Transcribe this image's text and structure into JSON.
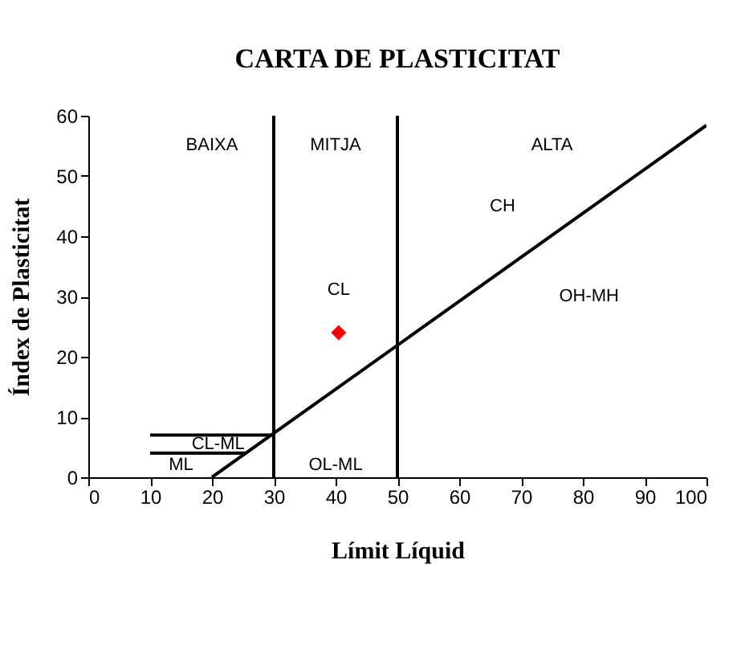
{
  "chart_data": {
    "type": "scatter",
    "title": "CARTA DE PLASTICITAT",
    "xlabel": "Límit Líquid",
    "ylabel": "Índex de Plasticitat",
    "xlim": [
      0,
      100
    ],
    "xticks": [
      0,
      10,
      20,
      30,
      40,
      50,
      60,
      70,
      80,
      90,
      100
    ],
    "ylim": [
      0,
      60
    ],
    "yticks": [
      0,
      10,
      20,
      30,
      40,
      50,
      60
    ],
    "grid": false,
    "series": [
      {
        "type": "line",
        "color": "#000000",
        "line_style": "solid",
        "marker": "none",
        "x": [
          20,
          100
        ],
        "values": [
          0,
          58.4
        ]
      },
      {
        "type": "line",
        "color": "#000000",
        "line_style": "solid",
        "marker": "none",
        "x": [
          30,
          30
        ],
        "values": [
          0,
          60
        ]
      },
      {
        "type": "line",
        "color": "#000000",
        "line_style": "solid",
        "marker": "none",
        "x": [
          50,
          50
        ],
        "values": [
          0,
          60
        ]
      },
      {
        "type": "line",
        "color": "#000000",
        "line_style": "solid",
        "marker": "none",
        "x": [
          10,
          30
        ],
        "values": [
          7,
          7
        ]
      },
      {
        "type": "line",
        "color": "#000000",
        "line_style": "solid",
        "marker": "none",
        "x": [
          10,
          25.5
        ],
        "values": [
          4,
          4
        ]
      },
      {
        "color": "#ff0000",
        "marker": "diamond",
        "x": [
          40.5
        ],
        "values": [
          24
        ]
      }
    ],
    "annotations": [
      "BAIXA",
      "MITJA",
      "ALTA",
      "CH",
      "CL",
      "OH-MH",
      "CL-ML",
      "ML",
      "OL-ML"
    ]
  }
}
